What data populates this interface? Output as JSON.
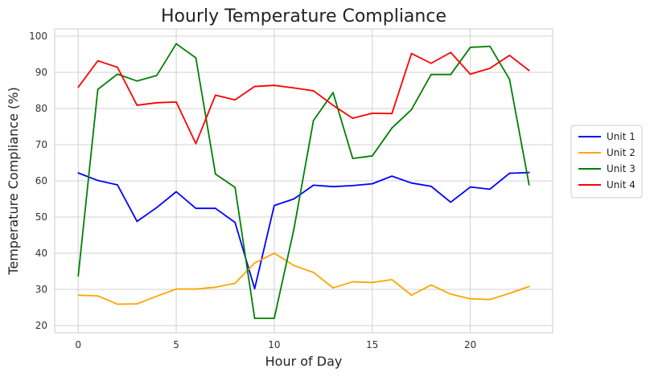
{
  "chart_data": {
    "type": "line",
    "title": "Hourly Temperature Compliance",
    "xlabel": "Hour of Day",
    "ylabel": "Temperature Compliance (%)",
    "x": [
      0,
      1,
      2,
      3,
      4,
      5,
      6,
      7,
      8,
      9,
      10,
      11,
      12,
      13,
      14,
      15,
      16,
      17,
      18,
      19,
      20,
      21,
      22,
      23
    ],
    "xlim": [
      -1.2,
      24.2
    ],
    "ylim": [
      18,
      102
    ],
    "xticks": [
      0,
      5,
      10,
      15,
      20
    ],
    "yticks": [
      20,
      30,
      40,
      50,
      60,
      70,
      80,
      90,
      100
    ],
    "grid": true,
    "legend_position": "right",
    "series": [
      {
        "name": "Unit 1",
        "color": "#0000ff",
        "values": [
          62.2,
          60.1,
          58.9,
          48.8,
          52.6,
          57.0,
          52.4,
          52.4,
          48.5,
          30.2,
          53.2,
          55.0,
          58.8,
          58.4,
          58.7,
          59.2,
          61.3,
          59.4,
          58.5,
          54.1,
          58.3,
          57.7,
          62.1,
          62.3
        ]
      },
      {
        "name": "Unit 2",
        "color": "#ffa500",
        "values": [
          28.4,
          28.2,
          25.9,
          26.0,
          28.1,
          30.1,
          30.1,
          30.6,
          31.7,
          37.3,
          40.0,
          36.6,
          34.7,
          30.4,
          32.1,
          31.9,
          32.7,
          28.4,
          31.2,
          28.7,
          27.4,
          27.2,
          28.9,
          30.8
        ]
      },
      {
        "name": "Unit 3",
        "color": "#008000",
        "values": [
          33.7,
          85.3,
          89.5,
          87.6,
          89.1,
          97.9,
          94.0,
          61.9,
          58.2,
          22.0,
          22.0,
          46.6,
          76.7,
          84.4,
          66.2,
          66.9,
          74.6,
          79.7,
          89.4,
          89.4,
          96.9,
          97.2,
          88.1,
          58.9
        ]
      },
      {
        "name": "Unit 4",
        "color": "#ff0000",
        "values": [
          85.9,
          93.2,
          91.4,
          80.9,
          81.6,
          81.8,
          70.3,
          83.7,
          82.4,
          86.1,
          86.4,
          85.7,
          84.9,
          80.9,
          77.3,
          78.7,
          78.6,
          95.2,
          92.5,
          95.5,
          89.5,
          91.1,
          94.7,
          90.5
        ]
      }
    ]
  }
}
